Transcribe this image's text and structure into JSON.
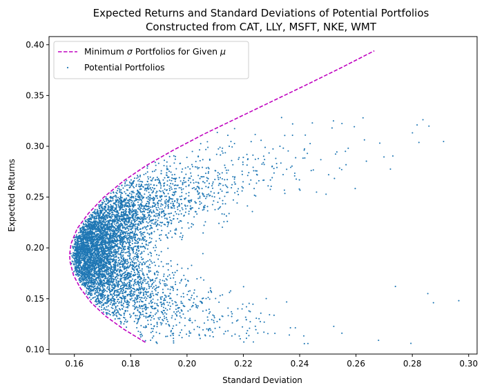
{
  "chart_data": {
    "type": "scatter",
    "title": [
      "Expected Returns and Standard Deviations of Potential Portfolios",
      "Constructed from CAT, LLY, MSFT, NKE, WMT"
    ],
    "xlabel": "Standard Deviation",
    "ylabel": "Expected Returns",
    "xlim": [
      0.151,
      0.303
    ],
    "ylim": [
      0.0955,
      0.408
    ],
    "xticks": [
      "0.16",
      "0.18",
      "0.20",
      "0.22",
      "0.24",
      "0.26",
      "0.28",
      "0.30"
    ],
    "yticks": [
      "0.10",
      "0.15",
      "0.20",
      "0.25",
      "0.30",
      "0.35",
      "0.40"
    ],
    "grid": false,
    "legend_position": "top-left",
    "legend": [
      {
        "label_prefix": "Minimum ",
        "label_symbol_1": "σ",
        "label_middle": " Portfolios for Given ",
        "label_symbol_2": "μ",
        "style": "dashed-line"
      },
      {
        "label": "Potential Portfolios",
        "style": "marker"
      }
    ],
    "series": [
      {
        "name": "Minimum σ Portfolios for Given μ",
        "kind": "dashed-line",
        "color": "#bf00bf",
        "points": [
          [
            0.1852,
            0.107
          ],
          [
            0.1775,
            0.12
          ],
          [
            0.171,
            0.133
          ],
          [
            0.166,
            0.146
          ],
          [
            0.1622,
            0.16
          ],
          [
            0.1597,
            0.173
          ],
          [
            0.1585,
            0.186
          ],
          [
            0.1583,
            0.193
          ],
          [
            0.1588,
            0.204
          ],
          [
            0.161,
            0.219
          ],
          [
            0.165,
            0.234
          ],
          [
            0.1705,
            0.25
          ],
          [
            0.1775,
            0.266
          ],
          [
            0.1855,
            0.281
          ],
          [
            0.195,
            0.296
          ],
          [
            0.206,
            0.312
          ],
          [
            0.218,
            0.328
          ],
          [
            0.23,
            0.344
          ],
          [
            0.242,
            0.36
          ],
          [
            0.2545,
            0.377
          ],
          [
            0.2665,
            0.394
          ]
        ]
      },
      {
        "name": "Potential Portfolios",
        "kind": "scatter",
        "color": "#1f77b4",
        "n_points": 6200,
        "sample_points": [
          [
            0.2965,
            0.148
          ],
          [
            0.2875,
            0.146
          ],
          [
            0.2855,
            0.155
          ],
          [
            0.2795,
            0.106
          ],
          [
            0.2625,
            0.328
          ],
          [
            0.252,
            0.325
          ],
          [
            0.2515,
            0.318
          ],
          [
            0.2445,
            0.323
          ],
          [
            0.242,
            0.311
          ],
          [
            0.2375,
            0.322
          ],
          [
            0.233,
            0.3
          ],
          [
            0.274,
            0.162
          ],
          [
            0.268,
            0.109
          ],
          [
            0.255,
            0.116
          ],
          [
            0.215,
            0.3
          ]
        ]
      }
    ]
  }
}
